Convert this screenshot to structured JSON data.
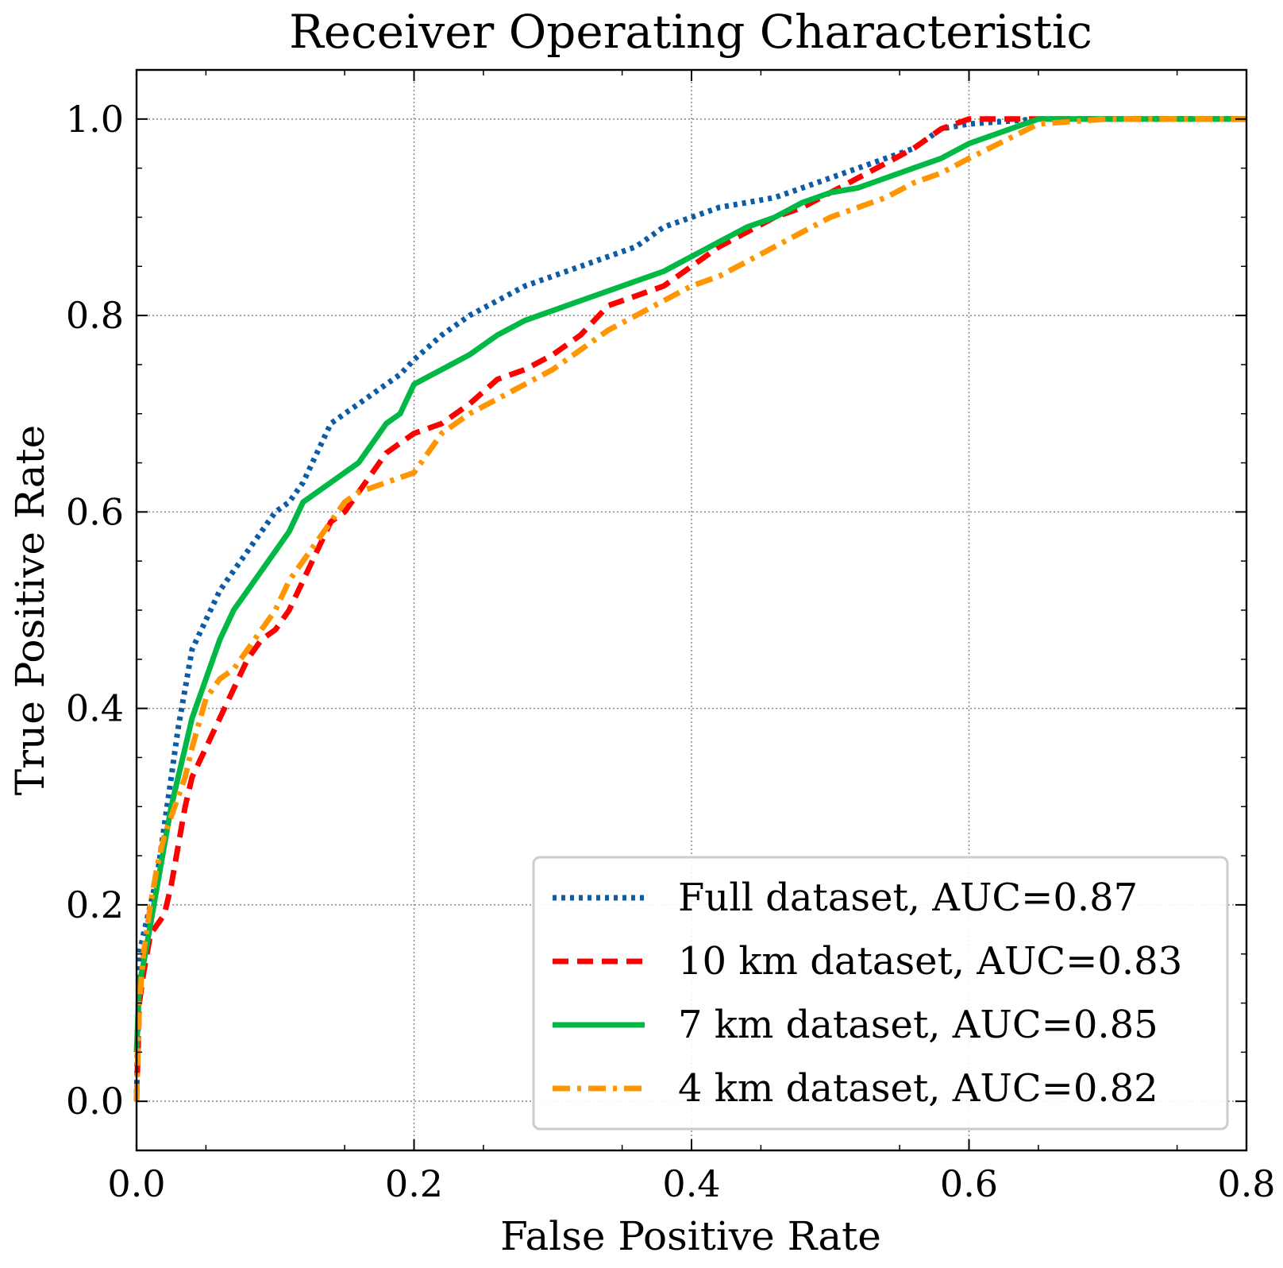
{
  "chart_data": {
    "type": "line",
    "title": "Receiver Operating Characteristic",
    "xlabel": "False Positive Rate",
    "ylabel": "True Positive Rate",
    "xlim": [
      0,
      0.8
    ],
    "ylim": [
      -0.05,
      1.05
    ],
    "xticks": [
      "0.0",
      "0.2",
      "0.4",
      "0.6",
      "0.8"
    ],
    "yticks": [
      "0.0",
      "0.2",
      "0.4",
      "0.6",
      "0.8",
      "1.0"
    ],
    "grid": true,
    "legend_position": "lower-right",
    "series": [
      {
        "name": "Full dataset, AUC=0.87",
        "color": "#0C5DA5",
        "style": "dotted",
        "x": [
          0,
          0.002,
          0.005,
          0.01,
          0.015,
          0.02,
          0.025,
          0.03,
          0.035,
          0.04,
          0.05,
          0.06,
          0.07,
          0.08,
          0.09,
          0.1,
          0.11,
          0.12,
          0.13,
          0.14,
          0.15,
          0.16,
          0.17,
          0.18,
          0.19,
          0.2,
          0.22,
          0.24,
          0.26,
          0.28,
          0.3,
          0.32,
          0.34,
          0.36,
          0.38,
          0.4,
          0.42,
          0.44,
          0.46,
          0.48,
          0.5,
          0.52,
          0.54,
          0.56,
          0.58,
          0.6,
          0.65,
          0.7,
          0.75,
          0.8
        ],
        "y": [
          0.0,
          0.15,
          0.17,
          0.2,
          0.23,
          0.28,
          0.33,
          0.38,
          0.42,
          0.46,
          0.49,
          0.52,
          0.54,
          0.56,
          0.58,
          0.6,
          0.61,
          0.63,
          0.66,
          0.69,
          0.7,
          0.71,
          0.72,
          0.73,
          0.74,
          0.755,
          0.78,
          0.8,
          0.815,
          0.83,
          0.84,
          0.85,
          0.86,
          0.87,
          0.89,
          0.9,
          0.91,
          0.915,
          0.92,
          0.93,
          0.94,
          0.95,
          0.96,
          0.97,
          0.99,
          0.995,
          1.0,
          1.0,
          1.0,
          1.0
        ]
      },
      {
        "name": "10 km dataset, AUC=0.83",
        "color": "#FF0000",
        "style": "dashed",
        "x": [
          0,
          0.002,
          0.005,
          0.01,
          0.015,
          0.02,
          0.025,
          0.03,
          0.035,
          0.04,
          0.05,
          0.06,
          0.07,
          0.08,
          0.09,
          0.1,
          0.11,
          0.12,
          0.13,
          0.14,
          0.15,
          0.16,
          0.17,
          0.18,
          0.19,
          0.2,
          0.22,
          0.24,
          0.26,
          0.28,
          0.3,
          0.32,
          0.34,
          0.36,
          0.38,
          0.4,
          0.42,
          0.44,
          0.46,
          0.48,
          0.5,
          0.52,
          0.54,
          0.56,
          0.58,
          0.6,
          0.65,
          0.7,
          0.75,
          0.8
        ],
        "y": [
          0.0,
          0.1,
          0.13,
          0.17,
          0.18,
          0.19,
          0.22,
          0.26,
          0.3,
          0.33,
          0.36,
          0.39,
          0.42,
          0.45,
          0.47,
          0.48,
          0.5,
          0.53,
          0.56,
          0.59,
          0.6,
          0.62,
          0.64,
          0.66,
          0.67,
          0.68,
          0.69,
          0.71,
          0.735,
          0.745,
          0.76,
          0.78,
          0.81,
          0.82,
          0.83,
          0.85,
          0.87,
          0.885,
          0.9,
          0.91,
          0.925,
          0.94,
          0.955,
          0.97,
          0.99,
          1.0,
          1.0,
          1.0,
          1.0,
          1.0
        ]
      },
      {
        "name": "7 km dataset, AUC=0.85",
        "color": "#00B945",
        "style": "solid",
        "x": [
          0,
          0.002,
          0.005,
          0.01,
          0.015,
          0.02,
          0.025,
          0.03,
          0.035,
          0.04,
          0.05,
          0.06,
          0.07,
          0.08,
          0.09,
          0.1,
          0.11,
          0.12,
          0.13,
          0.14,
          0.15,
          0.16,
          0.17,
          0.18,
          0.19,
          0.2,
          0.22,
          0.24,
          0.26,
          0.28,
          0.3,
          0.32,
          0.34,
          0.36,
          0.38,
          0.4,
          0.42,
          0.44,
          0.46,
          0.48,
          0.5,
          0.52,
          0.54,
          0.56,
          0.58,
          0.6,
          0.65,
          0.7,
          0.75,
          0.8
        ],
        "y": [
          0.05,
          0.12,
          0.14,
          0.18,
          0.22,
          0.26,
          0.3,
          0.33,
          0.36,
          0.39,
          0.43,
          0.47,
          0.5,
          0.52,
          0.54,
          0.56,
          0.58,
          0.61,
          0.62,
          0.63,
          0.64,
          0.65,
          0.67,
          0.69,
          0.7,
          0.73,
          0.745,
          0.76,
          0.78,
          0.795,
          0.805,
          0.815,
          0.825,
          0.835,
          0.845,
          0.86,
          0.875,
          0.89,
          0.9,
          0.915,
          0.925,
          0.93,
          0.94,
          0.95,
          0.96,
          0.975,
          1.0,
          1.0,
          1.0,
          1.0
        ]
      },
      {
        "name": "4 km dataset, AUC=0.82",
        "color": "#FF9500",
        "style": "dashdot",
        "x": [
          0,
          0.002,
          0.005,
          0.01,
          0.015,
          0.02,
          0.025,
          0.03,
          0.035,
          0.04,
          0.05,
          0.06,
          0.07,
          0.08,
          0.09,
          0.1,
          0.11,
          0.12,
          0.13,
          0.14,
          0.15,
          0.16,
          0.17,
          0.18,
          0.19,
          0.2,
          0.22,
          0.24,
          0.26,
          0.28,
          0.3,
          0.32,
          0.34,
          0.36,
          0.38,
          0.4,
          0.42,
          0.44,
          0.46,
          0.48,
          0.5,
          0.52,
          0.54,
          0.56,
          0.58,
          0.6,
          0.65,
          0.7,
          0.75,
          0.8
        ],
        "y": [
          0.0,
          0.1,
          0.15,
          0.2,
          0.24,
          0.27,
          0.29,
          0.31,
          0.33,
          0.36,
          0.41,
          0.43,
          0.44,
          0.46,
          0.48,
          0.5,
          0.53,
          0.55,
          0.57,
          0.59,
          0.61,
          0.62,
          0.625,
          0.63,
          0.635,
          0.64,
          0.68,
          0.7,
          0.715,
          0.73,
          0.745,
          0.765,
          0.785,
          0.8,
          0.815,
          0.83,
          0.84,
          0.855,
          0.87,
          0.885,
          0.9,
          0.91,
          0.92,
          0.935,
          0.945,
          0.96,
          0.995,
          1.0,
          1.0,
          1.0
        ]
      }
    ]
  }
}
